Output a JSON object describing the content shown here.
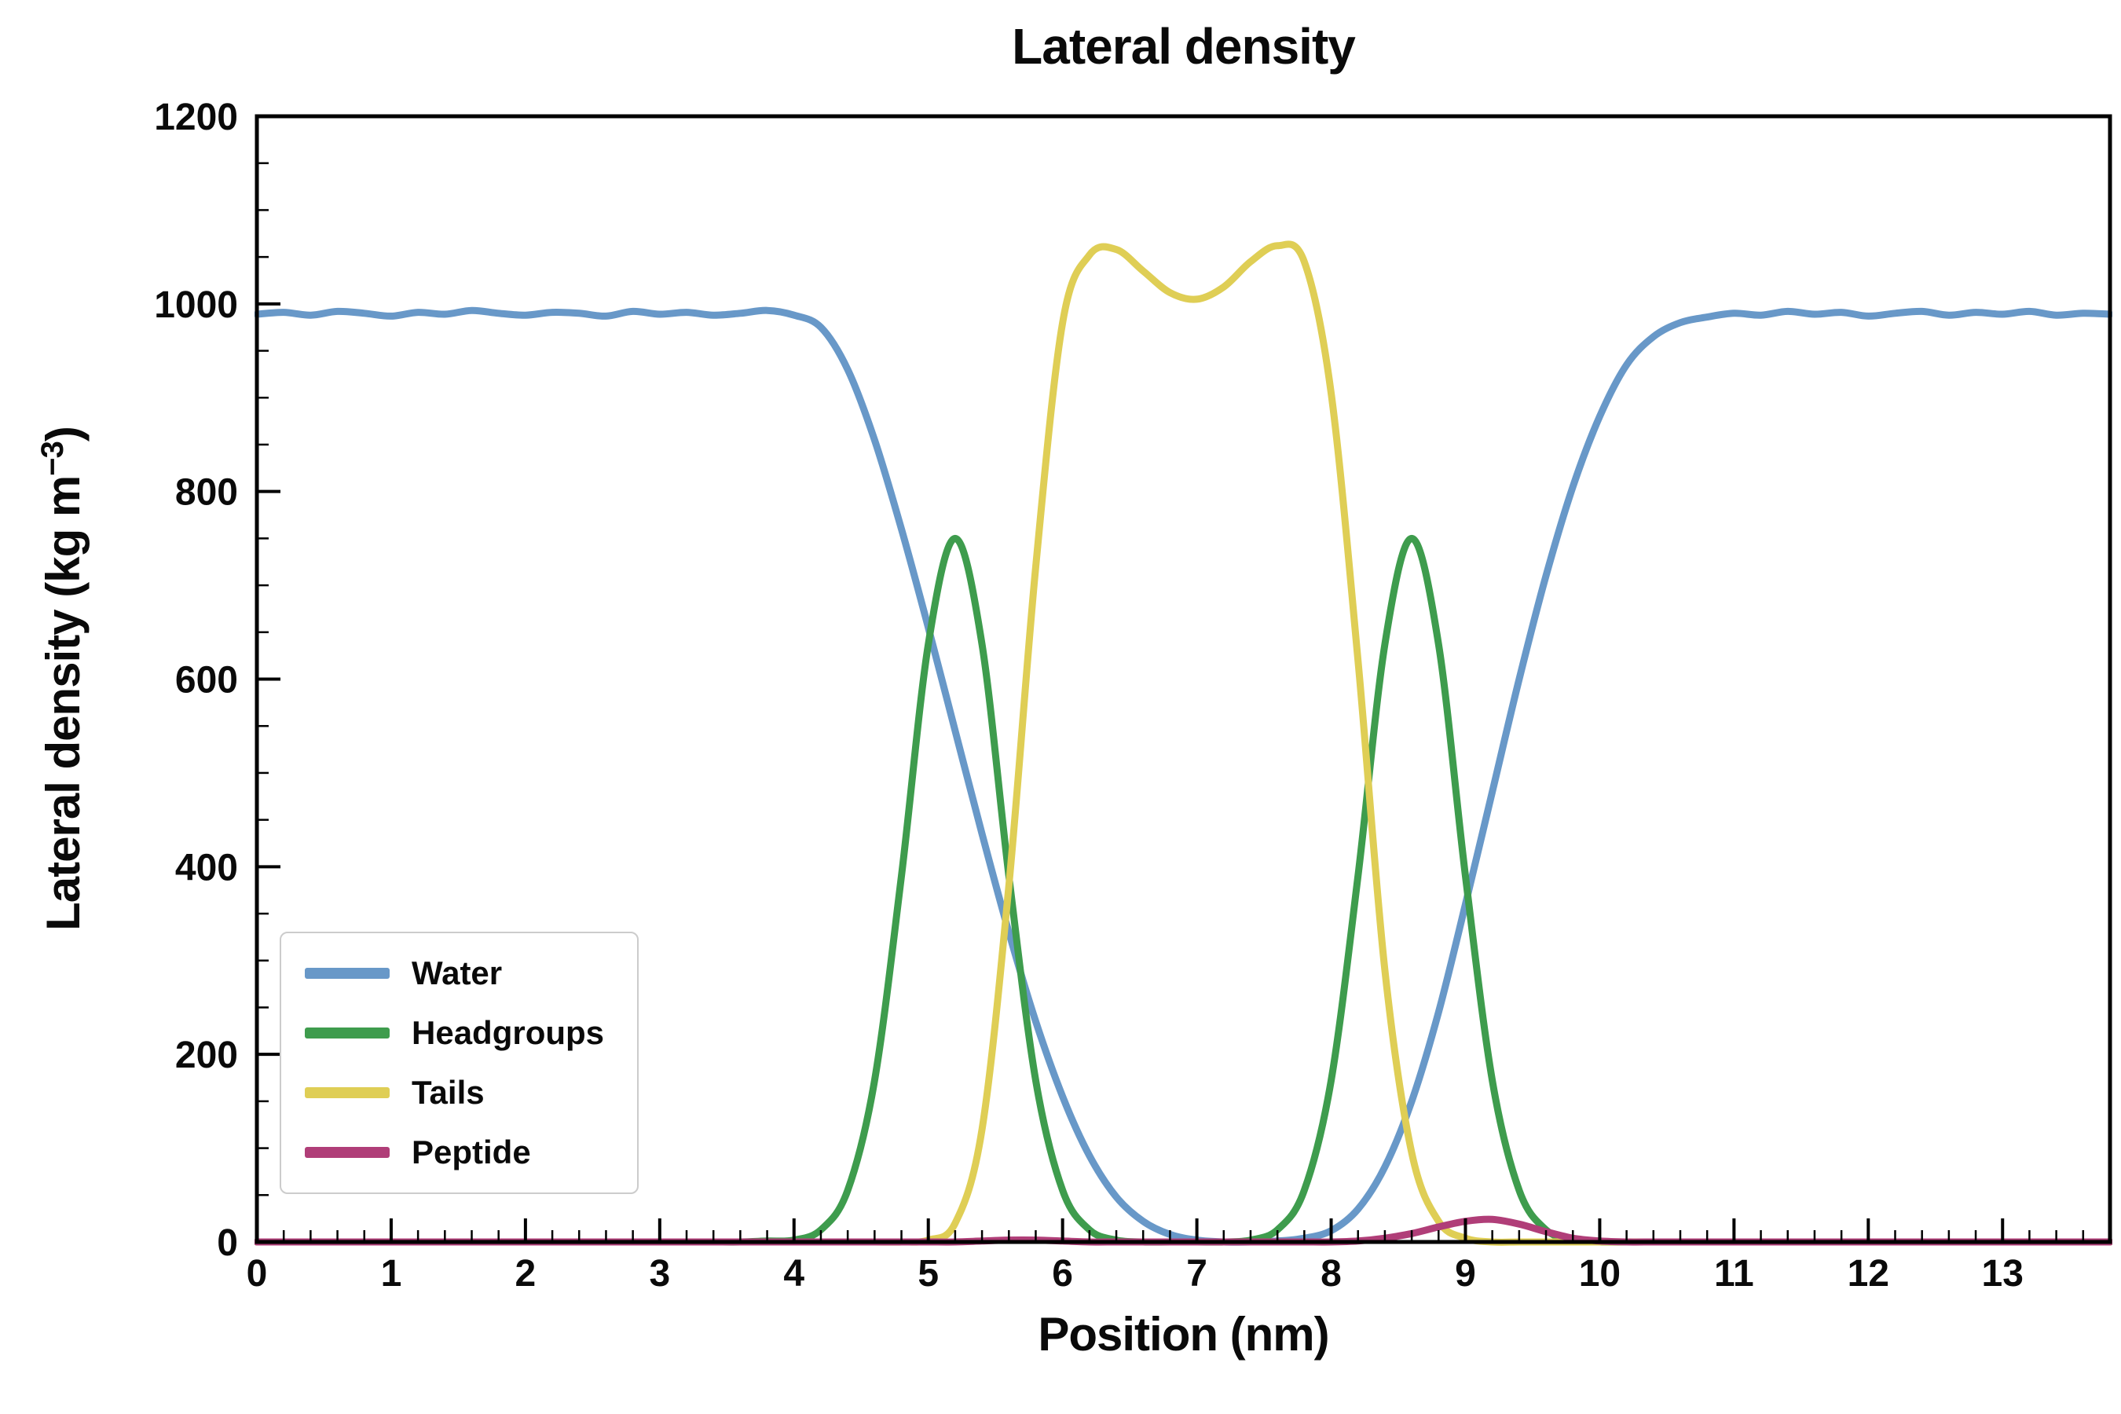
{
  "title": "Lateral density",
  "labels": {
    "xlabel": "Position (nm)",
    "ylabel": "Lateral density (kg m⁻³)",
    "ylabel_prefix": "Lateral density (kg m",
    "ylabel_sup": "−3",
    "ylabel_suffix": ")"
  },
  "legend": {
    "position": "lower left",
    "entries": [
      "Water",
      "Headgroups",
      "Tails",
      "Peptide"
    ]
  },
  "chart_data": {
    "type": "line",
    "title": "Lateral density",
    "xlabel": "Position (nm)",
    "ylabel": "Lateral density (kg m⁻³)",
    "xlim": [
      0,
      13.8
    ],
    "ylim": [
      0,
      1200
    ],
    "xticks": [
      0,
      1,
      2,
      3,
      4,
      5,
      6,
      7,
      8,
      9,
      10,
      11,
      12,
      13
    ],
    "yticks": [
      0,
      200,
      400,
      600,
      800,
      1000,
      1200
    ],
    "x_minor_step": 0.2,
    "y_minor_step": 50,
    "grid": false,
    "legend_position": "lower left",
    "frame_color": "#000000",
    "background": "#ffffff",
    "x": [
      0,
      0.2,
      0.4,
      0.6,
      0.8,
      1,
      1.2,
      1.4,
      1.6,
      1.8,
      2,
      2.2,
      2.4,
      2.6,
      2.8,
      3,
      3.2,
      3.4,
      3.6,
      3.8,
      4,
      4.2,
      4.4,
      4.6,
      4.8,
      5,
      5.2,
      5.4,
      5.6,
      5.8,
      6,
      6.2,
      6.4,
      6.6,
      6.8,
      7,
      7.2,
      7.4,
      7.6,
      7.8,
      8,
      8.2,
      8.4,
      8.6,
      8.8,
      9,
      9.2,
      9.4,
      9.6,
      9.8,
      10,
      10.2,
      10.4,
      10.6,
      10.8,
      11,
      11.2,
      11.4,
      11.6,
      11.8,
      12,
      12.2,
      12.4,
      12.6,
      12.8,
      13,
      13.2,
      13.4,
      13.6,
      13.8
    ],
    "series": [
      {
        "name": "Water",
        "color": "#6898C8",
        "values": [
          989,
          991,
          988,
          992,
          990,
          987,
          991,
          989,
          993,
          990,
          988,
          991,
          990,
          987,
          992,
          989,
          991,
          988,
          990,
          993,
          988,
          975,
          930,
          855,
          760,
          655,
          545,
          435,
          330,
          235,
          155,
          92,
          48,
          22,
          8,
          2,
          0,
          0,
          1,
          4,
          12,
          35,
          80,
          150,
          245,
          360,
          480,
          600,
          710,
          805,
          880,
          935,
          965,
          980,
          986,
          990,
          988,
          992,
          989,
          991,
          987,
          990,
          992,
          988,
          991,
          989,
          992,
          988,
          990,
          989
        ]
      },
      {
        "name": "Headgroups",
        "color": "#3E9C4D",
        "values": [
          0,
          0,
          0,
          0,
          0,
          0,
          0,
          0,
          0,
          0,
          0,
          0,
          0,
          0,
          0,
          0,
          0,
          0,
          0,
          1,
          2,
          13,
          55,
          172,
          390,
          637,
          750,
          637,
          390,
          172,
          55,
          13,
          2,
          0,
          0,
          0,
          0,
          2,
          13,
          55,
          172,
          390,
          637,
          750,
          637,
          390,
          172,
          55,
          13,
          2,
          0,
          0,
          0,
          0,
          0,
          0,
          0,
          0,
          0,
          0,
          0,
          0,
          0,
          0,
          0,
          0,
          0,
          0,
          0,
          0
        ]
      },
      {
        "name": "Tails",
        "color": "#DFCE55",
        "values": [
          0,
          0,
          0,
          0,
          0,
          0,
          0,
          0,
          0,
          0,
          0,
          0,
          0,
          0,
          0,
          0,
          0,
          0,
          0,
          0,
          0,
          0,
          0,
          0,
          0,
          2,
          20,
          120,
          380,
          720,
          980,
          1052,
          1058,
          1035,
          1012,
          1005,
          1018,
          1045,
          1062,
          1045,
          905,
          620,
          290,
          95,
          22,
          4,
          0,
          0,
          0,
          0,
          0,
          0,
          0,
          0,
          0,
          0,
          0,
          0,
          0,
          0,
          0,
          0,
          0,
          0,
          0,
          0,
          0,
          0,
          0,
          0
        ]
      },
      {
        "name": "Peptide",
        "color": "#B03E78",
        "values": [
          0,
          0,
          0,
          0,
          0,
          0,
          0,
          0,
          0,
          0,
          0,
          0,
          0,
          0,
          0,
          0,
          0,
          0,
          0,
          0,
          0,
          0,
          0,
          0,
          0,
          0,
          0,
          1,
          2,
          2,
          1,
          0,
          0,
          0,
          0,
          0,
          0,
          0,
          0,
          0,
          0,
          1,
          4,
          9,
          16,
          22,
          24,
          19,
          11,
          4,
          1,
          0,
          0,
          0,
          0,
          0,
          0,
          0,
          0,
          0,
          0,
          0,
          0,
          0,
          0,
          0,
          0,
          0,
          0,
          0
        ]
      }
    ]
  }
}
